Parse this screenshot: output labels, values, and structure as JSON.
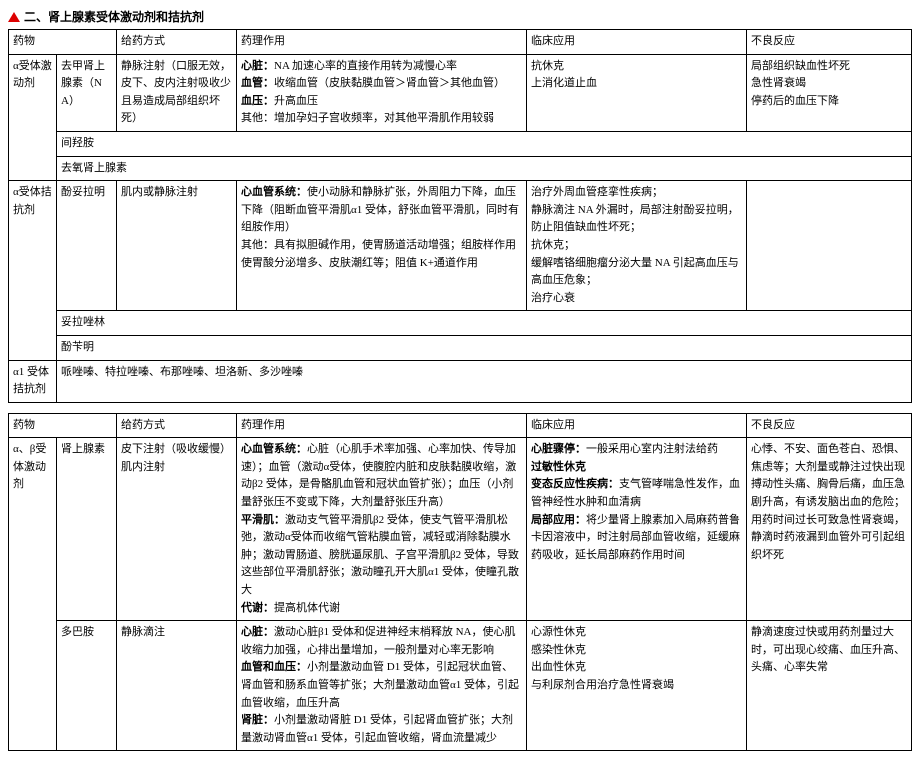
{
  "title": "二、肾上腺素受体激动剂和拮抗剂",
  "table1": {
    "headers": [
      "药物",
      "",
      "给药方式",
      "药理作用",
      "临床应用",
      "不良反应"
    ],
    "rows": {
      "cat1": "α受体激动剂",
      "drug1": "去甲肾上腺素（NA）",
      "admin1": "静脉注射（口服无效，皮下、皮内注射吸收少且易造成局部组织坏死）",
      "pharm1_heart": "心脏：",
      "pharm1_heart_txt": "NA 加速心率的直接作用转为减慢心率",
      "pharm1_vessel": "血管：",
      "pharm1_vessel_txt": "收缩血管（皮肤黏膜血管＞肾血管＞其他血管）",
      "pharm1_bp": "血压：",
      "pharm1_bp_txt": "升高血压",
      "pharm1_other": "其他：增加孕妇子宫收频率，对其他平滑肌作用较弱",
      "clin1a": "抗休克",
      "clin1b": "上消化道止血",
      "adv1a": "局部组织缺血性坏死",
      "adv1b": "急性肾衰竭",
      "adv1c": "停药后的血压下降",
      "drug2": "间羟胺",
      "drug3": "去氧肾上腺素",
      "cat2": "α受体拮抗剂",
      "drug4": "酚妥拉明",
      "admin4": "肌内或静脉注射",
      "pharm4_cv": "心血管系统：",
      "pharm4_cv_txt": "使小动脉和静脉扩张，外周阻力下降，血压下降（阻断血管平滑肌α1 受体，舒张血管平滑肌，同时有组胺作用）",
      "pharm4_other": "其他：具有拟胆碱作用，使胃肠道活动增强；组胺样作用使胃酸分泌增多、皮肤潮红等；阻值 K+通道作用",
      "clin4a": "治疗外周血管痉挛性疾病；",
      "clin4b": "静脉滴注 NA 外漏时，局部注射酚妥拉明，防止阻值缺血性坏死；",
      "clin4c": "抗休克；",
      "clin4d": "缓解嗜铬细胞瘤分泌大量 NA 引起高血压与高血压危象；",
      "clin4e": "治疗心衰",
      "drug5": "妥拉唑林",
      "drug6": "酚苄明",
      "cat3": "α1 受体拮抗剂",
      "drug7": "哌唑嗪、特拉唑嗪、布那唑嗪、坦洛新、多沙唑嗪"
    }
  },
  "table2": {
    "headers": [
      "药物",
      "",
      "给药方式",
      "药理作用",
      "临床应用",
      "不良反应"
    ],
    "rows": {
      "cat1": "α、β受体激动剂",
      "drug1": "肾上腺素",
      "admin1": "皮下注射（吸收缓慢）肌内注射",
      "pharm1_cv": "心血管系统：",
      "pharm1_cv_txt": "心脏（心肌手术率加强、心率加快、传导加速）；血管（激动α受体，使腹腔内脏和皮肤黏膜收缩，激动β2 受体，是骨骼肌血管和冠状血管扩张）；血压（小剂量舒张压不变或下降，大剂量舒张压升高）",
      "pharm1_sm": "平滑肌：",
      "pharm1_sm_txt": "激动支气管平滑肌β2 受体，使支气管平滑肌松弛，激动α受体而收缩气管粘膜血管，减轻或消除黏膜水肿；激动胃肠道、膀胱逼尿肌、子宫平滑肌β2 受体，导致这些部位平滑肌舒张；激动瞳孔开大肌α1 受体，使瞳孔散大",
      "pharm1_met": "代谢：",
      "pharm1_met_txt": "提高机体代谢",
      "clin1_arrest": "心脏骤停：",
      "clin1_arrest_txt": "一般采用心室内注射法给药",
      "clin1_shock": "过敏性休克",
      "clin1_allergic": "变态反应性疾病：",
      "clin1_allergic_txt": "支气管哮喘急性发作，血管神经性水肿和血清病",
      "clin1_local": "局部应用：",
      "clin1_local_txt": "将少量肾上腺素加入局麻药普鲁卡因溶液中，时注射局部血管收缩，延缓麻药吸收，延长局部麻药作用时间",
      "adv1": "心悸、不安、面色苍白、恐惧、焦虑等；大剂量或静注过快出现搏动性头痛、胸骨后痛，血压急剧升高，有诱发脑出血的危险；用药时间过长可致急性肾衰竭，静滴时药液漏到血管外可引起组织坏死",
      "drug2": "多巴胺",
      "admin2": "静脉滴注",
      "pharm2_heart": "心脏：",
      "pharm2_heart_txt": "激动心脏β1 受体和促进神经末梢释放 NA，使心肌收缩力加强，心排出量增加，一般剂量对心率无影响",
      "pharm2_bp": "血管和血压：",
      "pharm2_bp_txt": "小剂量激动血管 D1 受体，引起冠状血管、肾血管和肠系血管等扩张；大剂量激动血管α1 受体，引起血管收缩，血压升高",
      "pharm2_kidney": "肾脏：",
      "pharm2_kidney_txt": "小剂量激动肾脏 D1 受体，引起肾血管扩张；大剂量激动肾血管α1 受体，引起血管收缩，肾血流量减少",
      "clin2a": "心源性休克",
      "clin2b": "感染性休克",
      "clin2c": "出血性休克",
      "clin2d": "与利尿剂合用治疗急性肾衰竭",
      "adv2": "静滴速度过快或用药剂量过大时，可出现心绞痛、血压升高、头痛、心率失常"
    }
  }
}
